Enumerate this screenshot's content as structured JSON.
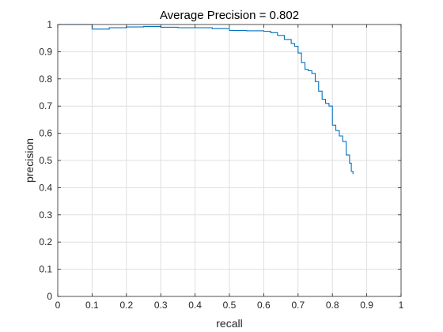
{
  "chart_data": {
    "type": "line",
    "title": "Average Precision = 0.802",
    "xlabel": "recall",
    "ylabel": "precision",
    "xlim": [
      0,
      1
    ],
    "ylim": [
      0,
      1
    ],
    "xticks": [
      "0",
      "0.1",
      "0.2",
      "0.3",
      "0.4",
      "0.5",
      "0.6",
      "0.7",
      "0.8",
      "0.9",
      "1"
    ],
    "yticks": [
      "0",
      "0.1",
      "0.2",
      "0.3",
      "0.4",
      "0.5",
      "0.6",
      "0.7",
      "0.8",
      "0.9",
      "1"
    ],
    "grid": true,
    "legend": "none",
    "series": [
      {
        "color": "#0072BD",
        "x": [
          0.0,
          0.1,
          0.1,
          0.15,
          0.2,
          0.25,
          0.3,
          0.3,
          0.35,
          0.4,
          0.45,
          0.5,
          0.55,
          0.6,
          0.62,
          0.64,
          0.66,
          0.68,
          0.69,
          0.7,
          0.71,
          0.72,
          0.73,
          0.74,
          0.75,
          0.76,
          0.77,
          0.78,
          0.79,
          0.8,
          0.8,
          0.81,
          0.82,
          0.83,
          0.84,
          0.85,
          0.855,
          0.86
        ],
        "y": [
          1.0,
          1.0,
          0.983,
          0.988,
          0.991,
          0.993,
          0.993,
          0.99,
          0.988,
          0.988,
          0.985,
          0.978,
          0.977,
          0.975,
          0.97,
          0.96,
          0.945,
          0.93,
          0.92,
          0.895,
          0.86,
          0.835,
          0.83,
          0.82,
          0.79,
          0.755,
          0.725,
          0.71,
          0.7,
          0.69,
          0.63,
          0.61,
          0.59,
          0.57,
          0.52,
          0.49,
          0.46,
          0.45
        ]
      }
    ]
  }
}
